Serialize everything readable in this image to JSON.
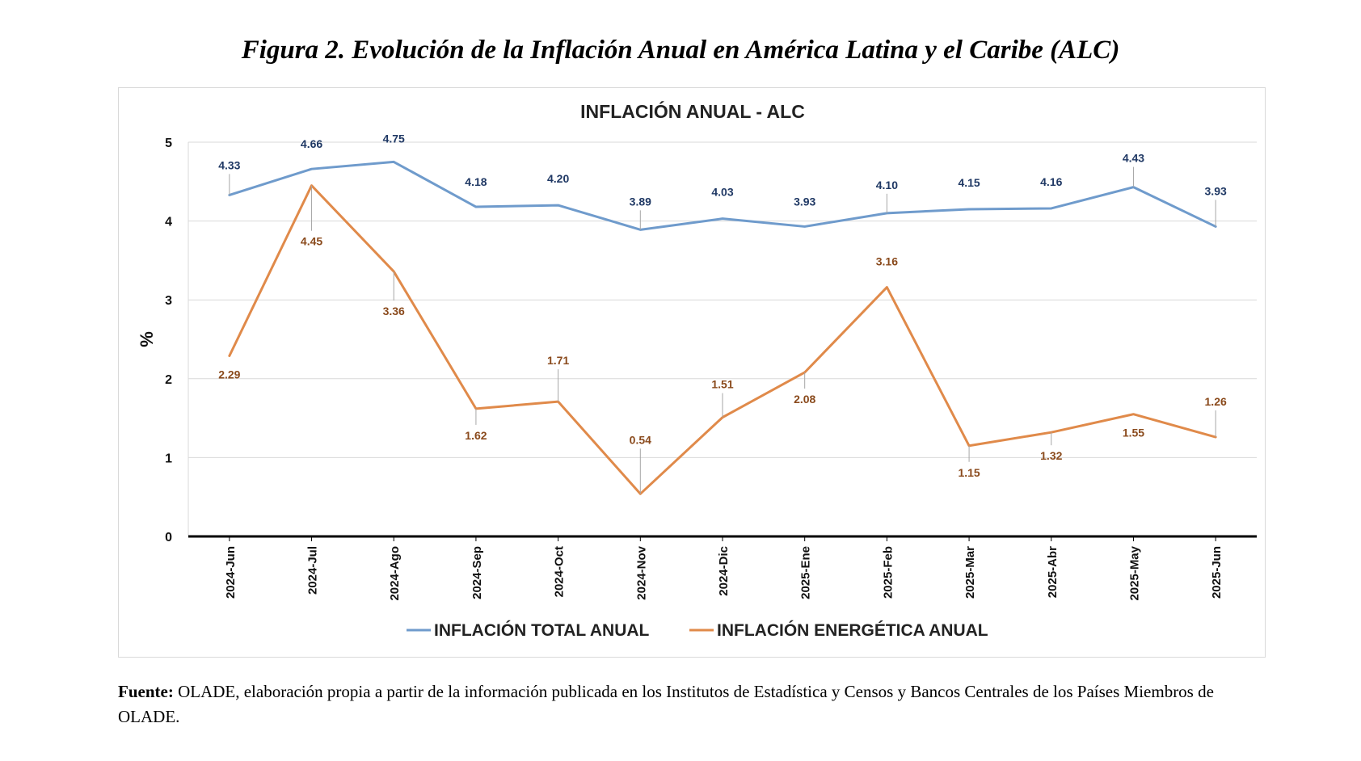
{
  "figure": {
    "title": "Figura 2. Evolución de la Inflación Anual en América Latina y el Caribe (ALC)"
  },
  "source": {
    "label": "Fuente:",
    "text": "OLADE, elaboración propia a partir de la información publicada en los Institutos de Estadística y Censos y Bancos Centrales de los Países Miembros de OLADE."
  },
  "chart_data": {
    "type": "line",
    "title": "INFLACIÓN ANUAL - ALC",
    "xlabel": "",
    "ylabel": "%",
    "ylim": [
      0,
      5
    ],
    "yticks": [
      "0",
      "1",
      "2",
      "3",
      "4",
      "5"
    ],
    "grid": true,
    "legend_position": "bottom",
    "categories": [
      "2024-Jun",
      "2024-Jul",
      "2024-Ago",
      "2024-Sep",
      "2024-Oct",
      "2024-Nov",
      "2024-Dic",
      "2025-Ene",
      "2025-Feb",
      "2025-Mar",
      "2025-Abr",
      "2025-May",
      "2025-Jun"
    ],
    "series": [
      {
        "name": "INFLACIÓN TOTAL ANUAL",
        "color": "#6f9bcc",
        "label_color": "#1f3864",
        "values": [
          4.33,
          4.66,
          4.75,
          4.18,
          4.2,
          3.89,
          4.03,
          3.93,
          4.1,
          4.15,
          4.16,
          4.43,
          3.93
        ],
        "labels": [
          "4.33",
          "4.66",
          "4.75",
          "4.18",
          "4.20",
          "3.89",
          "4.03",
          "3.93",
          "4.10",
          "4.15",
          "4.16",
          "4.43",
          "3.93"
        ]
      },
      {
        "name": "INFLACIÓN ENERGÉTICA ANUAL",
        "color": "#e08a4a",
        "label_color": "#8a4a1c",
        "values": [
          2.29,
          4.45,
          3.36,
          1.62,
          1.71,
          0.54,
          1.51,
          2.08,
          3.16,
          1.15,
          1.32,
          1.55,
          1.26
        ],
        "labels": [
          "2.29",
          "4.45",
          "3.36",
          "1.62",
          "1.71",
          "0.54",
          "1.51",
          "2.08",
          "3.16",
          "1.15",
          "1.32",
          "1.55",
          "1.26"
        ]
      }
    ]
  }
}
